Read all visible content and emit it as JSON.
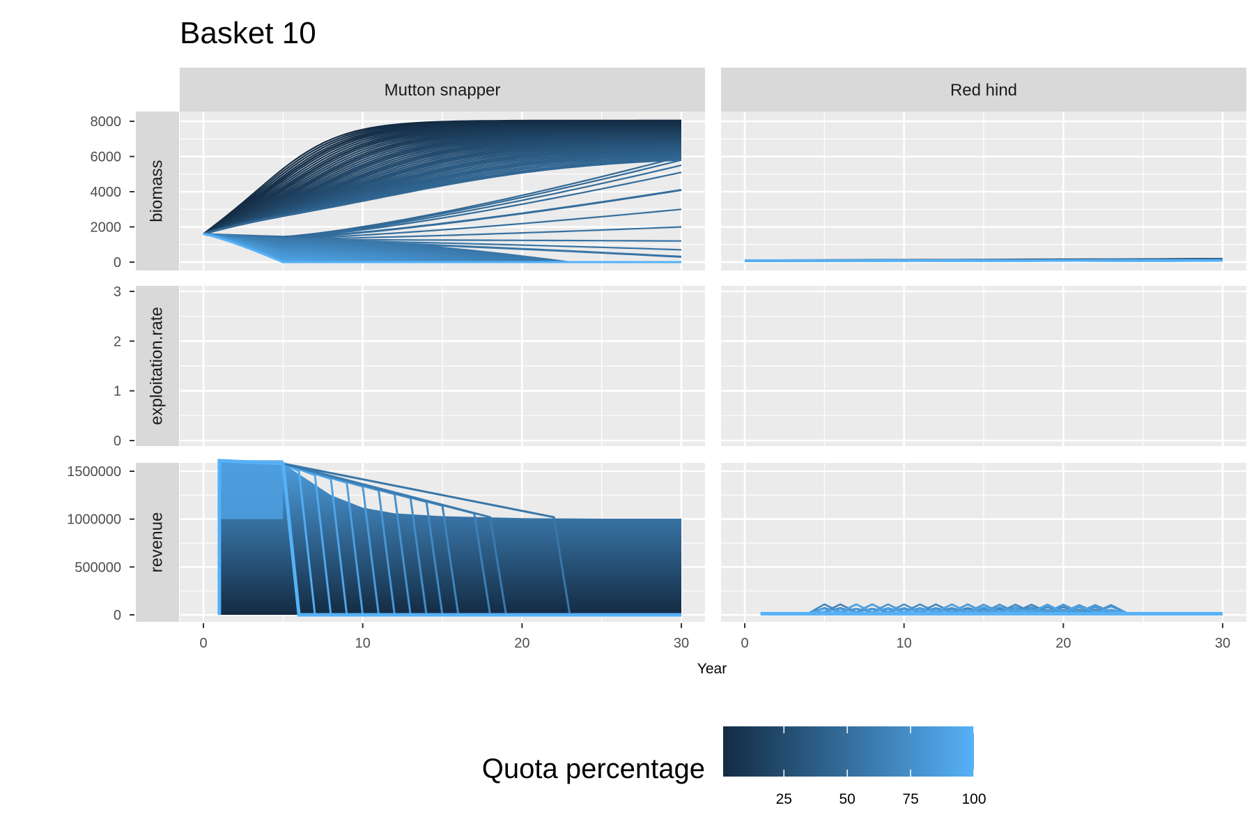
{
  "chart_data": {
    "type": "line",
    "title": "Basket 10",
    "xlabel": "Year",
    "facet_columns": [
      "Mutton snapper",
      "Red hind"
    ],
    "facet_rows": [
      "biomass",
      "exploitation.rate",
      "revenue"
    ],
    "x_range": [
      0,
      30
    ],
    "x_ticks": [
      0,
      10,
      20,
      30
    ],
    "y_axes": {
      "biomass": {
        "range": [
          0,
          8000
        ],
        "ticks": [
          0,
          2000,
          4000,
          6000,
          8000
        ]
      },
      "exploitation.rate": {
        "range": [
          0,
          3
        ],
        "ticks": [
          0,
          1,
          2,
          3
        ]
      },
      "revenue": {
        "range": [
          0,
          1500000
        ],
        "ticks": [
          0,
          500000,
          1000000,
          1500000
        ]
      }
    },
    "legend": {
      "title": "Quota percentage",
      "position": "bottom",
      "range": [
        1,
        100
      ],
      "ticks": [
        25,
        50,
        75,
        100
      ],
      "low_color": "#132B43",
      "high_color": "#56B1F7"
    },
    "grid": true,
    "panel_background": "#EBEBEB",
    "strip_background": "#D9D9D9",
    "series_note": "One line per quota percentage (1-100), colored by quota percentage.",
    "series_samples": {
      "Mutton snapper": {
        "biomass": {
          "x": [
            0,
            2,
            4,
            6,
            8,
            10,
            12,
            15,
            20,
            25,
            30
          ],
          "quota_1": [
            1600,
            2400,
            3600,
            5000,
            6100,
            6900,
            7400,
            7800,
            8000,
            8050,
            8050
          ],
          "quota_50": [
            1600,
            1500,
            1500,
            1550,
            1600,
            1700,
            1900,
            2500,
            3400,
            4200,
            4800
          ],
          "quota_100": [
            1600,
            1200,
            600,
            0,
            0,
            0,
            0,
            0,
            0,
            0,
            0
          ]
        },
        "revenue": {
          "x": [
            1,
            5,
            8,
            10,
            12,
            15,
            20,
            25,
            30
          ],
          "quota_100": [
            1610000,
            1580000,
            0,
            0,
            0,
            0,
            0,
            0,
            0
          ],
          "envelope": [
            1610000,
            1580000,
            1250000,
            1120000,
            1060000,
            1030000,
            1010000,
            1005000,
            1005000
          ]
        }
      },
      "Red hind": {
        "biomass": {
          "x": [
            0,
            10,
            20,
            30
          ],
          "quota_1": [
            80,
            130,
            150,
            160
          ]
        },
        "revenue": {
          "x": [
            1,
            6,
            10,
            13,
            15,
            22,
            23,
            30
          ],
          "peak": [
            10000,
            80000,
            90000,
            110000,
            90000,
            70000,
            20000,
            20000
          ]
        }
      }
    }
  }
}
